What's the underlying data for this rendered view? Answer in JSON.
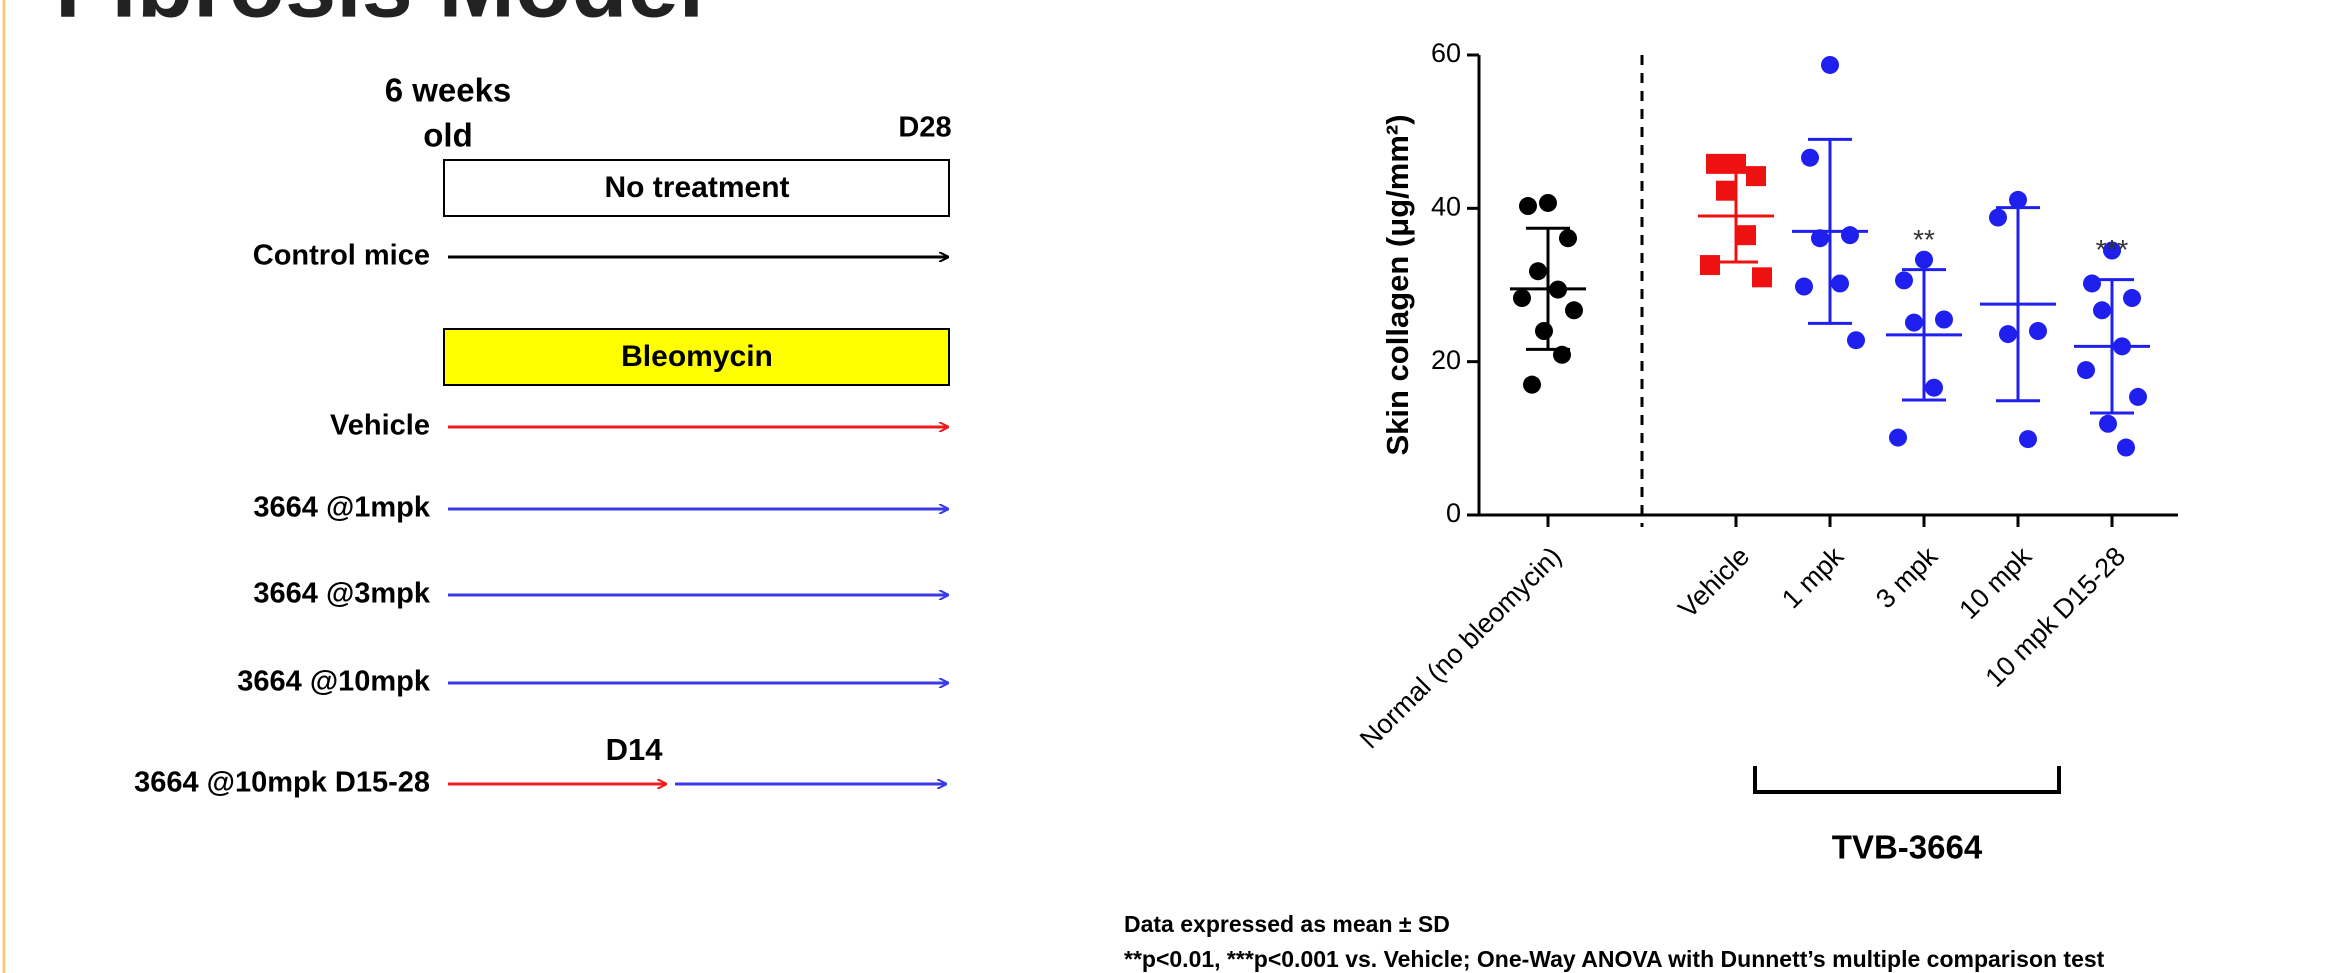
{
  "title": "Fibrosis Model",
  "diagram": {
    "age_label": [
      "6 weeks",
      "old"
    ],
    "end_label": "D28",
    "mid_label": "D14",
    "boxes": [
      {
        "label": "No treatment",
        "color": "#ffffff"
      },
      {
        "label": "Bleomycin",
        "color": "#ffff00"
      }
    ],
    "rows": [
      {
        "label": "Control mice",
        "color": "#000000"
      },
      {
        "label": "Vehicle",
        "color": "#ee1c1c"
      },
      {
        "label": "3664 @1mpk",
        "color": "#3a3ae8"
      },
      {
        "label": "3664 @3mpk",
        "color": "#3a3ae8"
      },
      {
        "label": "3664 @10mpk",
        "color": "#3a3ae8"
      },
      {
        "label": "3664 @10mpk D15-28",
        "color": "#3a3ae8"
      }
    ]
  },
  "chart_data": {
    "type": "dotplot",
    "y_label": "Skin collagen (μg/mm²)",
    "categories": [
      "Normal (no bleomycin)",
      "Vehicle",
      "1 mpk",
      "3 mpk",
      "10 mpk",
      "10 mpk D15-28"
    ],
    "colors": [
      "#000000",
      "#ee1111",
      "#1f1fee",
      "#1f1fee",
      "#1f1fee",
      "#1f1fee"
    ],
    "markers": [
      "circle",
      "square",
      "circle",
      "circle",
      "circle",
      "circle"
    ],
    "points": [
      [
        40.7,
        40.3,
        36.1,
        31.8,
        29.4,
        28.3,
        26.7,
        24.0,
        20.9,
        17.0
      ],
      [
        45.8,
        45.8,
        44.2,
        42.3,
        36.5,
        32.6,
        31.0
      ],
      [
        58.7,
        46.6,
        36.5,
        36.1,
        30.2,
        29.8,
        22.8
      ],
      [
        33.3,
        30.6,
        25.5,
        25.1,
        16.6,
        10.1
      ],
      [
        41.1,
        38.8,
        24.0,
        23.6,
        9.9
      ],
      [
        34.5,
        30.2,
        28.3,
        26.7,
        22.0,
        18.9,
        15.4,
        11.9,
        8.8
      ]
    ],
    "mean": [
      29.5,
      39.0,
      37.0,
      23.5,
      27.5,
      22.0
    ],
    "sd": [
      7.9,
      6.0,
      12.0,
      8.5,
      12.6,
      8.7
    ],
    "significance": [
      null,
      null,
      null,
      "**",
      null,
      "***"
    ],
    "group_label": "TVB-3664",
    "ylim": [
      0,
      60
    ],
    "yticks": [
      0,
      20,
      40,
      60
    ]
  },
  "footnotes": [
    "Data expressed as mean ± SD",
    "**p<0.01, ***p<0.001 vs. Vehicle; One-Way ANOVA with Dunnett’s multiple comparison test"
  ]
}
